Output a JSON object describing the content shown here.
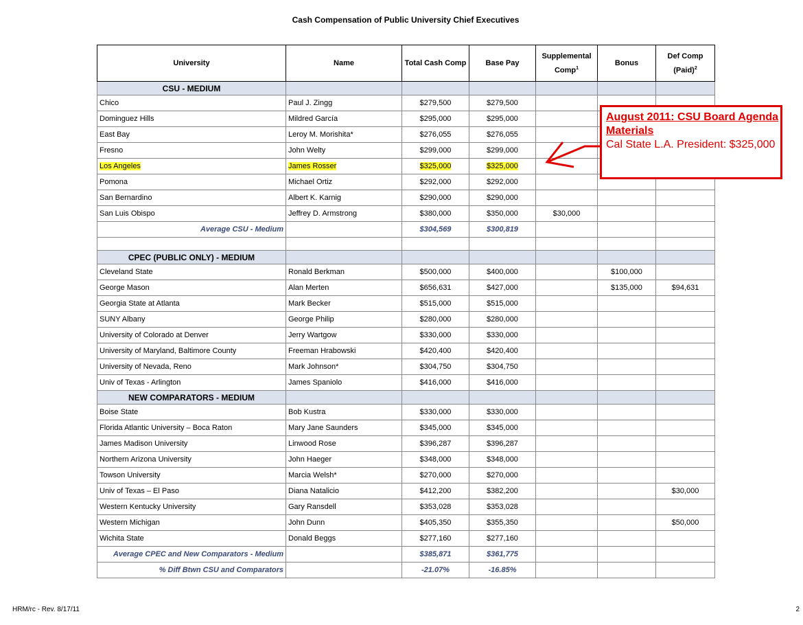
{
  "title": "Cash Compensation of Public University Chief Executives",
  "table": {
    "columns": [
      {
        "label": "University"
      },
      {
        "label": "Name"
      },
      {
        "label": "Total Cash Comp"
      },
      {
        "label": "Base Pay"
      },
      {
        "label": "Supplemental Comp",
        "note": "1"
      },
      {
        "label": "Bonus"
      },
      {
        "label": "Def Comp (Paid)",
        "note": "2"
      }
    ],
    "highlight_color": "#ffff33",
    "sections": [
      {
        "heading": "CSU - MEDIUM",
        "highlighted_row": 4,
        "rows": [
          [
            "Chico",
            "Paul J. Zingg",
            "$279,500",
            "$279,500",
            null,
            null,
            null
          ],
          [
            "Dominguez Hills",
            "Mildred García",
            "$295,000",
            "$295,000",
            null,
            null,
            null
          ],
          [
            "East Bay",
            "Leroy M. Morishita*",
            "$276,055",
            "$276,055",
            null,
            null,
            null
          ],
          [
            "Fresno",
            "John Welty",
            "$299,000",
            "$299,000",
            null,
            null,
            null
          ],
          [
            "Los Angeles",
            "James Rosser",
            "$325,000",
            "$325,000",
            null,
            null,
            null
          ],
          [
            "Pomona",
            "Michael Ortiz",
            "$292,000",
            "$292,000",
            null,
            null,
            null
          ],
          [
            "San Bernardino",
            "Albert K. Karnig",
            "$290,000",
            "$290,000",
            null,
            null,
            null
          ],
          [
            "San Luis Obispo",
            "Jeffrey D. Armstrong",
            "$380,000",
            "$350,000",
            "$30,000",
            null,
            null
          ]
        ],
        "summary": [
          [
            "Average CSU - Medium",
            null,
            "$304,569",
            "$300,819",
            null,
            null,
            null
          ]
        ]
      },
      {
        "heading": "CPEC (PUBLIC ONLY) - MEDIUM",
        "rows": [
          [
            "Cleveland State",
            "Ronald Berkman",
            "$500,000",
            "$400,000",
            null,
            "$100,000",
            null
          ],
          [
            "George Mason",
            "Alan Merten",
            "$656,631",
            "$427,000",
            null,
            "$135,000",
            "$94,631"
          ],
          [
            "Georgia State at Atlanta",
            "Mark Becker",
            "$515,000",
            "$515,000",
            null,
            null,
            null
          ],
          [
            "SUNY Albany",
            "George Philip",
            "$280,000",
            "$280,000",
            null,
            null,
            null
          ],
          [
            "University of Colorado at Denver",
            "Jerry Wartgow",
            "$330,000",
            "$330,000",
            null,
            null,
            null
          ],
          [
            "University of Maryland, Baltimore County",
            "Freeman Hrabowski",
            "$420,400",
            "$420,400",
            null,
            null,
            null
          ],
          [
            "University of Nevada, Reno",
            "Mark Johnson*",
            "$304,750",
            "$304,750",
            null,
            null,
            null
          ],
          [
            "Univ of Texas - Arlington",
            "James Spaniolo",
            "$416,000",
            "$416,000",
            null,
            null,
            null
          ]
        ]
      },
      {
        "heading": "NEW COMPARATORS - MEDIUM",
        "rows": [
          [
            "Boise State",
            "Bob Kustra",
            "$330,000",
            "$330,000",
            null,
            null,
            null
          ],
          [
            "Florida Atlantic University – Boca Raton",
            "Mary Jane Saunders",
            "$345,000",
            "$345,000",
            null,
            null,
            null
          ],
          [
            "James Madison University",
            "Linwood Rose",
            "$396,287",
            "$396,287",
            null,
            null,
            null
          ],
          [
            "Northern Arizona University",
            "John Haeger",
            "$348,000",
            "$348,000",
            null,
            null,
            null
          ],
          [
            "Towson University",
            "Marcia Welsh*",
            "$270,000",
            "$270,000",
            null,
            null,
            null
          ],
          [
            "Univ of Texas – El Paso",
            "Diana Natalicio",
            "$412,200",
            "$382,200",
            null,
            null,
            "$30,000"
          ],
          [
            "Western Kentucky University",
            "Gary Ransdell",
            "$353,028",
            "$353,028",
            null,
            null,
            null
          ],
          [
            "Western Michigan",
            "John Dunn",
            "$405,350",
            "$355,350",
            null,
            null,
            "$50,000"
          ],
          [
            "Wichita State",
            "Donald Beggs",
            "$277,160",
            "$277,160",
            null,
            null,
            null
          ]
        ],
        "summary": [
          [
            "Average CPEC and New Comparators - Medium",
            null,
            "$385,871",
            "$361,775",
            null,
            null,
            null
          ],
          [
            "% Diff Btwn CSU and Comparators",
            null,
            "-21.07%",
            "-16.85%",
            null,
            null,
            null
          ]
        ]
      }
    ]
  },
  "callout": {
    "heading": "August 2011: CSU Board Agenda Materials",
    "text": "Cal State L.A. President: $325,000"
  },
  "footer": {
    "left": "HRM/rc - Rev. 8/17/11",
    "right": "2"
  }
}
